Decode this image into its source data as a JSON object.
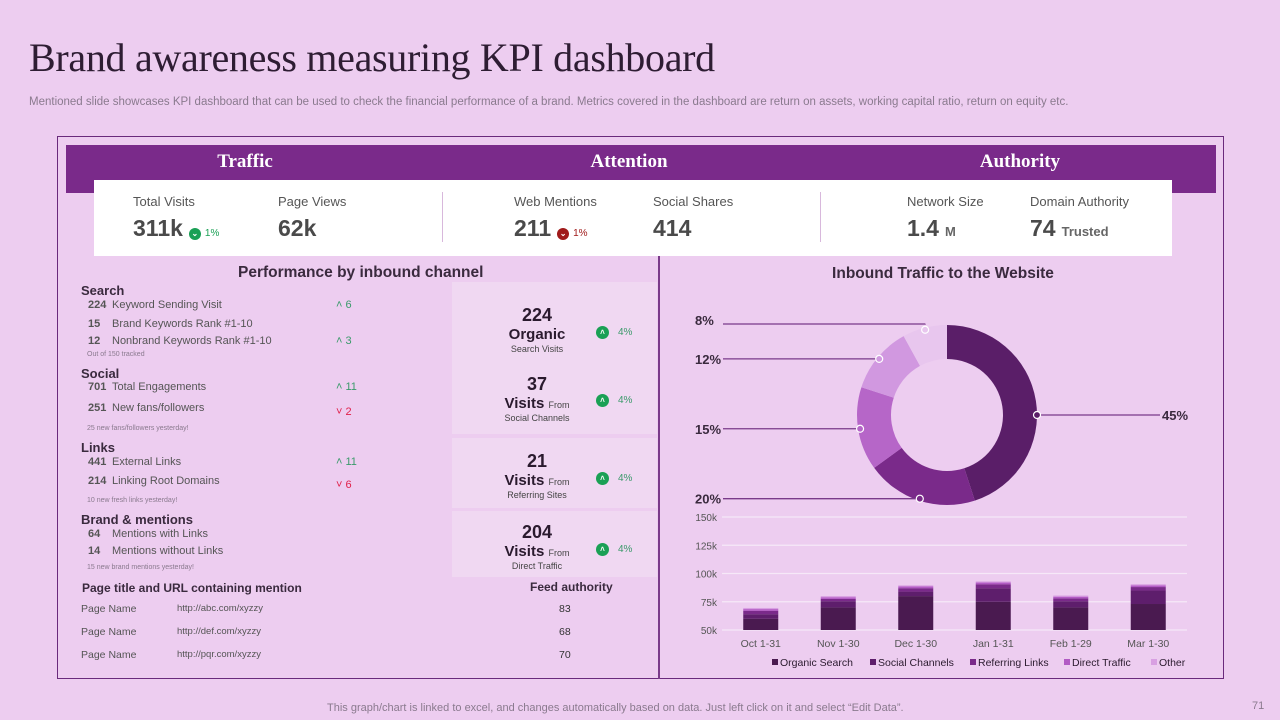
{
  "header": {
    "title": "Brand awareness measuring KPI dashboard",
    "subtitle": "Mentioned slide showcases KPI dashboard that can be used to check the financial performance of a brand. Metrics covered in the dashboard are return on assets, working capital ratio, return on equity etc."
  },
  "bands": [
    "Traffic",
    "Attention",
    "Authority"
  ],
  "kpis": [
    {
      "label": "Total Visits",
      "value": "311k",
      "change": "1%",
      "direction": "down",
      "color": "#1aa055"
    },
    {
      "label": "Page Views",
      "value": "62k"
    },
    {
      "label": "Web Mentions",
      "value": "211",
      "change": "1%",
      "direction": "down",
      "color": "#a01a1a"
    },
    {
      "label": "Social Shares",
      "value": "414"
    },
    {
      "label": "Network Size",
      "value": "1.4",
      "unit": "M"
    },
    {
      "label": "Domain Authority",
      "value": "74",
      "unit": "Trusted"
    }
  ],
  "performance": {
    "title": "Performance by inbound channel",
    "groups": [
      {
        "title": "Search",
        "rows": [
          {
            "n": "224",
            "label": "Keyword Sending Visit",
            "delta": "6",
            "dir": "up"
          },
          {
            "n": "15",
            "label": "Brand Keywords Rank #1-10",
            "delta": "",
            "dir": ""
          },
          {
            "n": "12",
            "label": "Nonbrand Keywords Rank #1-10",
            "delta": "3",
            "dir": "up"
          }
        ],
        "note": "Out of 150 tracked"
      },
      {
        "title": "Social",
        "rows": [
          {
            "n": "701",
            "label": "Total Engagements",
            "delta": "11",
            "dir": "up"
          },
          {
            "n": "251",
            "label": "New fans/followers",
            "delta": "2",
            "dir": "down"
          }
        ],
        "note": "25 new fans/followers yesterday!"
      },
      {
        "title": "Links",
        "rows": [
          {
            "n": "441",
            "label": "External Links",
            "delta": "11",
            "dir": "up"
          },
          {
            "n": "214",
            "label": "Linking Root Domains",
            "delta": "6",
            "dir": "down"
          }
        ],
        "note": "10 new fresh links yesterday!"
      },
      {
        "title": "Brand & mentions",
        "rows": [
          {
            "n": "64",
            "label": "Mentions with Links"
          },
          {
            "n": "14",
            "label": "Mentions without Links"
          }
        ],
        "note": "15 new brand mentions yesterday!"
      }
    ],
    "channels": [
      {
        "value": "224",
        "main": "Organic",
        "from": "",
        "sub": "Search Visits",
        "change": "4%"
      },
      {
        "value": "37",
        "main": "Visits",
        "from": "From",
        "sub": "Social Channels",
        "change": "4%"
      },
      {
        "value": "21",
        "main": "Visits",
        "from": "From",
        "sub": "Referring Sites",
        "change": "4%"
      },
      {
        "value": "204",
        "main": "Visits",
        "from": "From",
        "sub": "Direct Traffic",
        "change": "4%"
      }
    ],
    "mentions_table": {
      "header": "Page title and URL containing mention",
      "feed_header": "Feed authority",
      "rows": [
        {
          "page": "Page Name",
          "url": "http://abc.com/xyzzy",
          "feed": "83"
        },
        {
          "page": "Page Name",
          "url": "http://def.com/xyzzy",
          "feed": "68"
        },
        {
          "page": "Page Name",
          "url": "http://pqr.com/xyzzy",
          "feed": "70"
        }
      ]
    }
  },
  "chart_data": [
    {
      "type": "pie",
      "title": "Inbound Traffic to the Website",
      "labels": [
        "Organic Search",
        "Social Channels",
        "Referring Links",
        "Direct Traffic",
        "Other"
      ],
      "values": [
        45,
        20,
        15,
        12,
        8
      ],
      "value_labels": [
        "45%",
        "20%",
        "15%",
        "12%",
        "8%"
      ],
      "colors": [
        "#5a1e68",
        "#7a2a8a",
        "#b666c8",
        "#d198e0",
        "#e8c6ee"
      ],
      "donut": true
    },
    {
      "type": "bar",
      "stacked": true,
      "title": "",
      "categories": [
        "Oct 1-31",
        "Nov 1-30",
        "Dec 1-30",
        "Jan 1-31",
        "Feb 1-29",
        "Mar 1-30"
      ],
      "series": [
        {
          "name": "Organic Search",
          "values": [
            60,
            70,
            80,
            75,
            70,
            73
          ],
          "color": "#4a1a50"
        },
        {
          "name": "Social Channels",
          "values": [
            4,
            5.5,
            4,
            12,
            5.5,
            12
          ],
          "color": "#5e1e6c"
        },
        {
          "name": "Referring Links",
          "values": [
            3,
            2,
            3,
            3.5,
            2.5,
            3
          ],
          "color": "#7a2a8a"
        },
        {
          "name": "Direct Traffic",
          "values": [
            1.5,
            1.5,
            1.5,
            1.5,
            1.5,
            1.5
          ],
          "color": "#b25ac4"
        },
        {
          "name": "Other",
          "values": [
            1,
            1,
            1,
            1,
            1,
            1
          ],
          "color": "#d8a0e2"
        }
      ],
      "yticks": [
        "50k",
        "75k",
        "100k",
        "125k",
        "150k"
      ],
      "ylim": [
        50,
        150
      ],
      "yunit": "k",
      "legend": "bottom",
      "grid": true
    }
  ],
  "footer": {
    "note": "This graph/chart is linked to excel, and changes automatically based on data. Just left click on it and select “Edit Data”.",
    "page": "71"
  }
}
